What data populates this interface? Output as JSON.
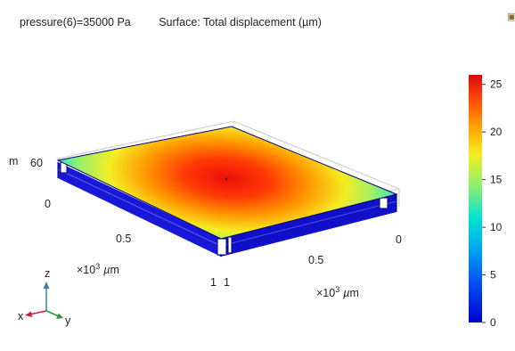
{
  "header": {
    "parameter": "pressure(6)=35000 Pa",
    "plot_title": "Surface: Total displacement (µm)"
  },
  "corner_icon": "camera-icon",
  "axes": {
    "z_label_left": "m",
    "z_tick_60": "60",
    "x_tick_0": "0",
    "x_tick_05": "0.5",
    "x_tick_1": "1",
    "x_unit_prefix": "×10",
    "x_unit_exp": "3",
    "x_unit_mu": "µ",
    "x_unit_m": "m",
    "y_tick_0": "0",
    "y_tick_05": "0.5",
    "y_tick_1": "1",
    "y_unit_prefix": "×10",
    "y_unit_exp": "3",
    "y_unit_mu": "µ",
    "y_unit_m": "m"
  },
  "triad": {
    "z": "z",
    "x": "x",
    "y": "y"
  },
  "colorbar": {
    "min": 0,
    "max": 26,
    "ticks": [
      "0",
      "5",
      "10",
      "15",
      "20",
      "25"
    ],
    "tick_values": [
      0,
      5,
      10,
      15,
      20,
      25
    ]
  },
  "colors": {
    "frame_blue": "#1414d8",
    "frame_dark": "#00007a",
    "triad_z": "#3d7fb0",
    "triad_x": "#c8203c",
    "triad_y": "#2a9a3a"
  }
}
